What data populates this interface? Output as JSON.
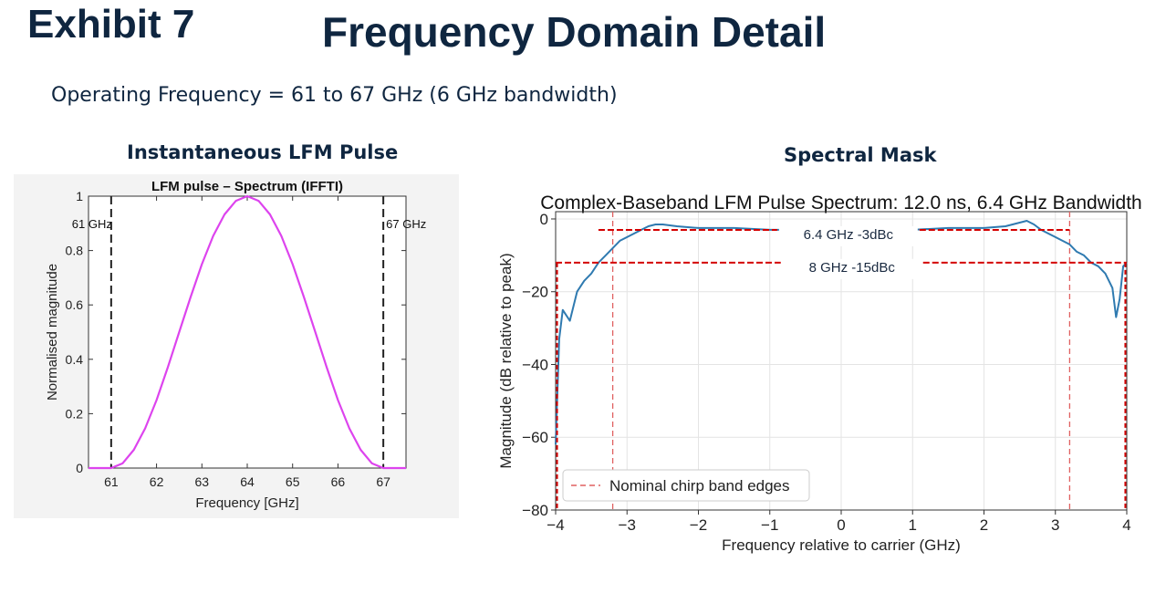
{
  "page": {
    "exhibit": "Exhibit 7",
    "title": "Frequency Domain Detail",
    "subtitle": "Operating Frequency = 61 to 67 GHz (6 GHz bandwidth)",
    "left_panel_title": "Instantaneous LFM Pulse",
    "right_panel_title": "Spectral Mask"
  },
  "chart_data": [
    {
      "type": "line",
      "title": "LFM pulse – Spectrum (IFFTI)",
      "xlabel": "Frequency  [GHz]",
      "ylabel": "Normalised magnitude",
      "xlim": [
        60.5,
        67.5
      ],
      "ylim": [
        0,
        1
      ],
      "xticks": [
        61,
        62,
        63,
        64,
        65,
        66,
        67
      ],
      "xtick_labels": [
        "61",
        "62",
        "63",
        "64",
        "65",
        "66",
        "67"
      ],
      "yticks": [
        0,
        0.2,
        0.4,
        0.6,
        0.8,
        1
      ],
      "ytick_labels": [
        "0",
        "0.2",
        "0.4",
        "0.6",
        "0.8",
        "1"
      ],
      "grid": false,
      "series": [
        {
          "color": "#dd44ee",
          "x": [
            60.5,
            61.0,
            61.25,
            61.5,
            61.75,
            62.0,
            62.25,
            62.5,
            62.75,
            63.0,
            63.25,
            63.5,
            63.75,
            64.0,
            64.25,
            64.5,
            64.75,
            65.0,
            65.25,
            65.5,
            65.75,
            66.0,
            66.25,
            66.5,
            66.75,
            67.0,
            67.5
          ],
          "y": [
            0,
            0,
            0.017,
            0.067,
            0.146,
            0.25,
            0.371,
            0.5,
            0.629,
            0.75,
            0.854,
            0.933,
            0.983,
            1.0,
            0.983,
            0.933,
            0.854,
            0.75,
            0.629,
            0.5,
            0.371,
            0.25,
            0.146,
            0.067,
            0.017,
            0,
            0
          ]
        }
      ],
      "vlines": [
        {
          "x": 61,
          "label": "61 GHz",
          "style": "dashed",
          "color": "#222222"
        },
        {
          "x": 67,
          "label": "67 GHz",
          "style": "dashed",
          "color": "#222222"
        }
      ]
    },
    {
      "type": "line",
      "title": "Complex-Baseband LFM Pulse Spectrum: 12.0 ns, 6.4 GHz Bandwidth",
      "xlabel": "Frequency relative to carrier (GHz)",
      "ylabel": "Magnitude (dB relative to peak)",
      "xlim": [
        -4,
        4
      ],
      "ylim": [
        -80,
        2
      ],
      "xticks": [
        -4,
        -3,
        -2,
        -1,
        0,
        1,
        2,
        3,
        4
      ],
      "xtick_labels": [
        "−4",
        "−3",
        "−2",
        "−1",
        "0",
        "1",
        "2",
        "3",
        "4"
      ],
      "yticks": [
        0,
        -20,
        -40,
        -60,
        -80
      ],
      "ytick_labels": [
        "0",
        "−20",
        "−40",
        "−60",
        "−80"
      ],
      "grid": true,
      "legend": {
        "position": "lower-left",
        "entries": [
          "Nominal chirp band edges"
        ]
      },
      "series": [
        {
          "color": "#2f7ab0",
          "x": [
            -4.0,
            -3.95,
            -3.9,
            -3.8,
            -3.7,
            -3.6,
            -3.5,
            -3.4,
            -3.3,
            -3.2,
            -3.1,
            -3.0,
            -2.9,
            -2.8,
            -2.7,
            -2.6,
            -2.5,
            -2.3,
            -2.0,
            -1.5,
            -1.0,
            -0.5,
            0.0,
            0.5,
            1.0,
            1.5,
            2.0,
            2.3,
            2.5,
            2.6,
            2.7,
            2.8,
            2.9,
            3.0,
            3.1,
            3.2,
            3.3,
            3.4,
            3.5,
            3.6,
            3.7,
            3.8,
            3.85,
            3.9,
            3.95,
            4.0
          ],
          "y": [
            -62,
            -33,
            -25,
            -28,
            -20,
            -17,
            -15,
            -12,
            -10,
            -8,
            -6,
            -5,
            -4,
            -3,
            -2,
            -1.5,
            -1.5,
            -2,
            -2.5,
            -2.5,
            -3,
            -3,
            -3,
            -3,
            -3,
            -2.5,
            -2.5,
            -2,
            -1,
            -0.5,
            -1.5,
            -3,
            -4,
            -5,
            -6,
            -7,
            -9,
            -10,
            -12,
            -13,
            -15,
            -19,
            -27,
            -22,
            -13,
            -12
          ]
        }
      ],
      "vlines": [
        {
          "x": -3.2,
          "label": "Nominal chirp band edges",
          "style": "dashed",
          "color": "#e06060"
        },
        {
          "x": 3.2,
          "style": "dashed",
          "color": "#e06060"
        },
        {
          "x": -3.98,
          "style": "dashed",
          "color": "#d40000"
        },
        {
          "x": 3.98,
          "style": "dashed",
          "color": "#d40000"
        }
      ],
      "annotations": [
        {
          "text": "6.4 GHz -3dBc",
          "y": -3,
          "x_range": [
            -3.4,
            3.2
          ],
          "label_x": 0.1,
          "color": "#d40000"
        },
        {
          "text": "8 GHz -15dBc",
          "y": -12,
          "x_range": [
            -4.0,
            4.0
          ],
          "label_x": 0.15,
          "color": "#d40000"
        }
      ]
    }
  ]
}
